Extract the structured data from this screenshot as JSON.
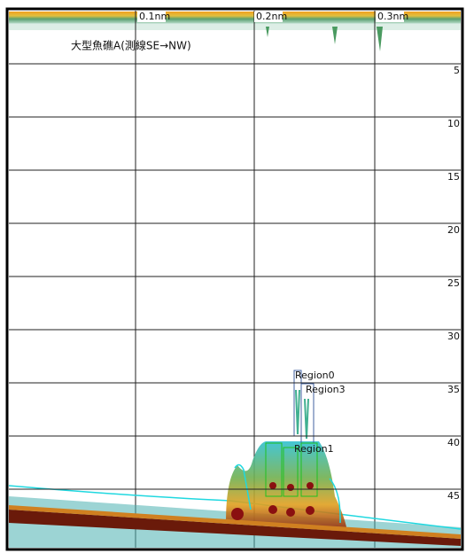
{
  "title": "大型魚礁A(測線SE→NW)",
  "distance_labels": [
    "0.1nm",
    "0.2nm",
    "0.3nm"
  ],
  "depth_labels": [
    "5",
    "10",
    "15",
    "20",
    "25",
    "30",
    "35",
    "40",
    "45"
  ],
  "regions": [
    "Region0",
    "Region3",
    "Region1"
  ]
}
